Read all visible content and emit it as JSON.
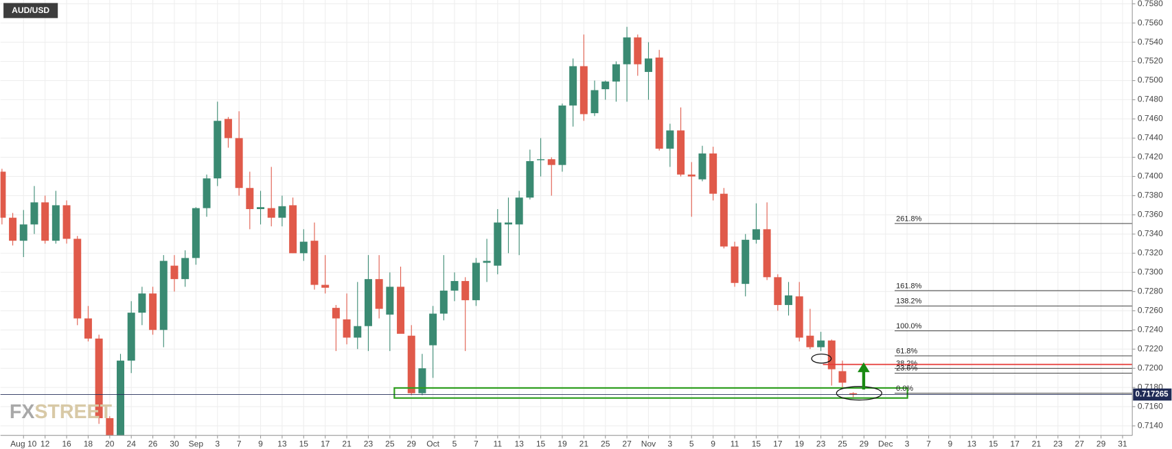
{
  "chart_data": {
    "type": "candlestick",
    "title": "AUD/USD",
    "watermark": [
      "FX",
      "STREET"
    ],
    "categories": [
      null,
      null,
      "Aug 10",
      null,
      "12",
      null,
      "16",
      null,
      "18",
      null,
      "20",
      null,
      "24",
      null,
      "26",
      null,
      "30",
      null,
      "Sep",
      null,
      "3",
      null,
      "7",
      null,
      "9",
      null,
      "13",
      null,
      "15",
      null,
      "17",
      null,
      "21",
      null,
      "23",
      null,
      "25",
      null,
      "29",
      null,
      "Oct",
      null,
      "5",
      null,
      "7",
      null,
      "11",
      null,
      "13",
      null,
      "15",
      null,
      "19",
      null,
      "21",
      null,
      "25",
      null,
      "27",
      null,
      "Nov",
      null,
      "3",
      null,
      "5",
      null,
      "9",
      null,
      "11",
      null,
      "15",
      null,
      "17",
      null,
      "19",
      null,
      "23",
      null,
      "25",
      null,
      "29",
      null,
      "Dec",
      null,
      "3",
      null,
      "7",
      null,
      "9",
      null,
      "13",
      null,
      "15",
      null,
      "17",
      null,
      "21",
      null,
      "23",
      null,
      "27",
      null,
      "29",
      null,
      "31"
    ],
    "open": [
      0.7405,
      0.7357,
      0.7333,
      0.735,
      0.7373,
      0.7333,
      0.737,
      0.7335,
      0.7252,
      0.7231,
      0.7148,
      0.713,
      0.7208,
      0.7258,
      0.7278,
      0.724,
      0.7307,
      0.7293,
      0.7315,
      0.7367,
      0.7398,
      0.746,
      0.744,
      0.7388,
      0.7366,
      0.7367,
      0.7357,
      0.737,
      0.732,
      0.7333,
      0.7287,
      0.7263,
      0.7251,
      0.7232,
      0.7244,
      0.7293,
      0.7256,
      0.7285,
      0.7234,
      0.7174,
      0.7224,
      0.7257,
      0.7281,
      0.7291,
      0.7271,
      0.731,
      0.7307,
      0.735,
      0.735,
      0.7378,
      0.7417,
      0.7418,
      0.7412,
      0.7474,
      0.7515,
      0.7466,
      0.7491,
      0.7499,
      0.7517,
      0.7545,
      0.7509,
      0.7524,
      0.7429,
      0.7448,
      0.7402,
      0.7397,
      0.7424,
      0.7382,
      0.7327,
      0.7288,
      0.7334,
      0.7345,
      0.7295,
      0.7266,
      0.7275,
      0.7234,
      0.7222,
      0.7229,
      0.7197,
      0.7174,
      null,
      null,
      null,
      null,
      null,
      null,
      null,
      null,
      null,
      null,
      null,
      null,
      null,
      null,
      null,
      null,
      null,
      null,
      null,
      null,
      null,
      null,
      null,
      null,
      null
    ],
    "high": [
      0.7408,
      0.7362,
      0.7365,
      0.739,
      0.738,
      0.7385,
      0.7375,
      0.7338,
      0.7265,
      0.7235,
      0.715,
      0.7215,
      0.727,
      0.7285,
      0.7285,
      0.7318,
      0.7318,
      0.7323,
      0.7368,
      0.7402,
      0.7478,
      0.7462,
      0.7468,
      0.7405,
      0.7385,
      0.741,
      0.738,
      0.7378,
      0.7345,
      0.7352,
      0.7318,
      0.7266,
      0.7278,
      0.729,
      0.7318,
      0.7318,
      0.73,
      0.7306,
      0.7245,
      0.7215,
      0.7265,
      0.7318,
      0.73,
      0.7295,
      0.7315,
      0.7335,
      0.7366,
      0.7378,
      0.7385,
      0.7428,
      0.744,
      0.742,
      0.7476,
      0.7523,
      0.7548,
      0.75,
      0.75,
      0.752,
      0.7556,
      0.7548,
      0.754,
      0.7532,
      0.7455,
      0.7472,
      0.7415,
      0.7432,
      0.7431,
      0.7388,
      0.7332,
      0.734,
      0.7372,
      0.7373,
      0.7298,
      0.729,
      0.729,
      0.7262,
      0.7238,
      0.723,
      0.7208,
      0.7175,
      null,
      null,
      null,
      null,
      null,
      null,
      null,
      null,
      null,
      null,
      null,
      null,
      null,
      null,
      null,
      null,
      null,
      null,
      null,
      null,
      null,
      null,
      null,
      null,
      null
    ],
    "low": [
      0.735,
      0.7328,
      0.7316,
      0.734,
      0.733,
      0.733,
      0.733,
      0.7245,
      0.7228,
      0.7142,
      0.712,
      0.7125,
      0.7195,
      0.7245,
      0.7235,
      0.7222,
      0.728,
      0.7285,
      0.7308,
      0.7358,
      0.739,
      0.743,
      0.738,
      0.7345,
      0.735,
      0.7348,
      0.7348,
      0.732,
      0.7312,
      0.7282,
      0.7278,
      0.7218,
      0.7225,
      0.722,
      0.7218,
      0.7252,
      0.7218,
      0.7237,
      0.7172,
      0.7172,
      0.719,
      0.725,
      0.727,
      0.7218,
      0.7265,
      0.729,
      0.7298,
      0.732,
      0.7318,
      0.7376,
      0.74,
      0.738,
      0.7405,
      0.7452,
      0.7458,
      0.7463,
      0.748,
      0.7478,
      0.7478,
      0.7505,
      0.748,
      0.7427,
      0.741,
      0.74,
      0.7358,
      0.7395,
      0.7375,
      0.7325,
      0.7285,
      0.7275,
      0.733,
      0.7292,
      0.726,
      0.7255,
      0.7228,
      0.722,
      0.7218,
      0.7182,
      0.718,
      0.717,
      null,
      null,
      null,
      null,
      null,
      null,
      null,
      null,
      null,
      null,
      null,
      null,
      null,
      null,
      null,
      null,
      null,
      null,
      null,
      null,
      null,
      null,
      null,
      null,
      null
    ],
    "close": [
      0.7357,
      0.7333,
      0.735,
      0.7373,
      0.7333,
      0.737,
      0.7335,
      0.7252,
      0.7231,
      0.7148,
      0.7128,
      0.7208,
      0.7258,
      0.7278,
      0.724,
      0.7312,
      0.7293,
      0.7315,
      0.7367,
      0.7398,
      0.7458,
      0.744,
      0.7388,
      0.7366,
      0.7368,
      0.7357,
      0.7369,
      0.732,
      0.7332,
      0.7287,
      0.7284,
      0.7252,
      0.7232,
      0.7244,
      0.7293,
      0.7262,
      0.7285,
      0.7236,
      0.7174,
      0.72,
      0.7257,
      0.7281,
      0.7291,
      0.7271,
      0.731,
      0.7312,
      0.7352,
      0.7352,
      0.7378,
      0.7416,
      0.7418,
      0.7412,
      0.7474,
      0.7515,
      0.7465,
      0.749,
      0.7499,
      0.7517,
      0.7545,
      0.7517,
      0.7523,
      0.7429,
      0.7448,
      0.7402,
      0.74,
      0.7424,
      0.7382,
      0.7327,
      0.7289,
      0.7334,
      0.7345,
      0.7295,
      0.7266,
      0.7276,
      0.7232,
      0.7222,
      0.7229,
      0.7199,
      0.7185,
      0.7173,
      null,
      null,
      null,
      null,
      null,
      null,
      null,
      null,
      null,
      null,
      null,
      null,
      null,
      null,
      null,
      null,
      null,
      null,
      null,
      null,
      null,
      null,
      null,
      null,
      null
    ],
    "up_color": "#3a8a72",
    "down_color": "#e05a4a",
    "ylim": [
      0.713,
      0.7584
    ],
    "yticks": [
      {
        "value": 0.714,
        "label": "0.7140"
      },
      {
        "value": 0.716,
        "label": "0.7160"
      },
      {
        "value": 0.718,
        "label": "0.7180"
      },
      {
        "value": 0.72,
        "label": "0.7200"
      },
      {
        "value": 0.722,
        "label": "0.7220"
      },
      {
        "value": 0.724,
        "label": "0.7240"
      },
      {
        "value": 0.726,
        "label": "0.7260"
      },
      {
        "value": 0.728,
        "label": "0.7280"
      },
      {
        "value": 0.73,
        "label": "0.7300"
      },
      {
        "value": 0.732,
        "label": "0.7320"
      },
      {
        "value": 0.734,
        "label": "0.7340"
      },
      {
        "value": 0.736,
        "label": "0.7360"
      },
      {
        "value": 0.738,
        "label": "0.7380"
      },
      {
        "value": 0.74,
        "label": "0.7400"
      },
      {
        "value": 0.742,
        "label": "0.7420"
      },
      {
        "value": 0.744,
        "label": "0.7440"
      },
      {
        "value": 0.746,
        "label": "0.7460"
      },
      {
        "value": 0.748,
        "label": "0.7480"
      },
      {
        "value": 0.75,
        "label": "0.7500"
      },
      {
        "value": 0.752,
        "label": "0.7520"
      },
      {
        "value": 0.754,
        "label": "0.7540"
      },
      {
        "value": 0.756,
        "label": "0.7560"
      },
      {
        "value": 0.758,
        "label": "0.7580"
      }
    ],
    "grid": true,
    "fib_levels": [
      {
        "label": "261.8%",
        "value": 0.7351
      },
      {
        "label": "161.8%",
        "value": 0.7281
      },
      {
        "label": "138.2%",
        "value": 0.7265
      },
      {
        "label": "100.0%",
        "value": 0.7239
      },
      {
        "label": "61.8%",
        "value": 0.7213
      },
      {
        "label": "38.2%",
        "value": 0.72
      },
      {
        "label": "23.6%",
        "value": 0.7195
      },
      {
        "label": "0.0%",
        "value": 0.7174
      }
    ],
    "resistance_line": {
      "value": 0.7204,
      "color": "#e53935"
    },
    "support_zone": {
      "low": 0.7169,
      "high": 0.71795,
      "color": "#2e9e1e"
    },
    "last_price": 0.717265,
    "last_price_color": "#1f2a55"
  }
}
